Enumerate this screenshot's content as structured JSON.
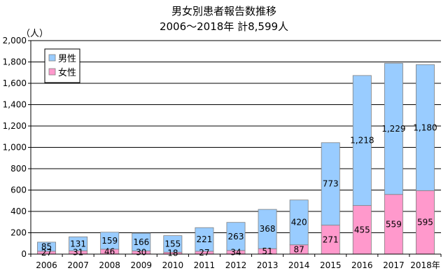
{
  "chart_data": {
    "type": "bar",
    "stacked": true,
    "title": "男女別患者報告数推移",
    "subtitle": "2006～2018年  計8,599人",
    "ylabel": "（人）",
    "xlabel": "",
    "categories": [
      "2006",
      "2007",
      "2008",
      "2009",
      "2010",
      "2011",
      "2012",
      "2013",
      "2014",
      "2015",
      "2016",
      "2017",
      "2018年"
    ],
    "series": [
      {
        "name": "女性",
        "color": "#ff99cc",
        "values": [
          27,
          31,
          46,
          30,
          18,
          27,
          34,
          51,
          87,
          271,
          455,
          559,
          595
        ]
      },
      {
        "name": "男性",
        "color": "#99ccff",
        "values": [
          85,
          131,
          159,
          166,
          155,
          221,
          263,
          368,
          420,
          773,
          1218,
          1229,
          1180
        ]
      }
    ],
    "ylim": [
      0,
      2000
    ],
    "yticks": [
      0,
      200,
      400,
      600,
      800,
      1000,
      1200,
      1400,
      1600,
      1800,
      2000
    ],
    "ytick_labels": [
      "0",
      "200",
      "400",
      "600",
      "800",
      "1,000",
      "1,200",
      "1,400",
      "1,600",
      "1,800",
      "2,000"
    ],
    "grid": true,
    "legend": {
      "position": "top-left",
      "entries": [
        "男性",
        "女性"
      ]
    }
  }
}
